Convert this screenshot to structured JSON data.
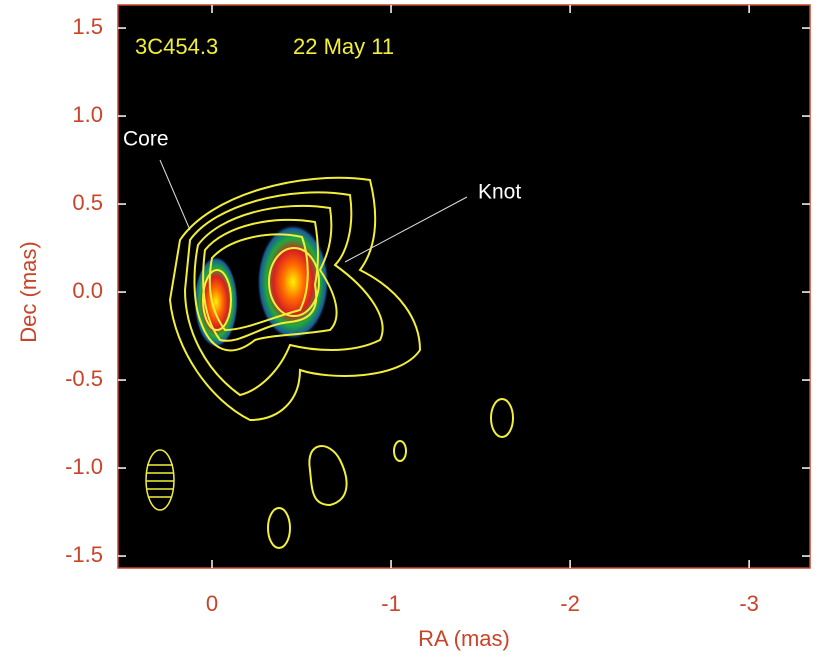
{
  "chart_data": {
    "type": "image",
    "source": "3C454.3",
    "epoch": "22 May 11",
    "annotations": [
      "Core",
      "Knot"
    ],
    "x_label": "RA (mas)",
    "y_label": "Dec (mas)",
    "xlim": [
      0.525,
      -3.34
    ],
    "ylim": [
      -1.568,
      1.631
    ],
    "xticks": [
      0,
      -1,
      -2,
      -3
    ],
    "yticks": [
      1.5,
      {
        "value": 1,
        "label": "1.0"
      },
      0.5,
      {
        "value": 0,
        "label": "0.0"
      },
      -0.5,
      {
        "value": -1,
        "label": "-1.0"
      },
      -1.5
    ],
    "color": "#c8442a"
  }
}
